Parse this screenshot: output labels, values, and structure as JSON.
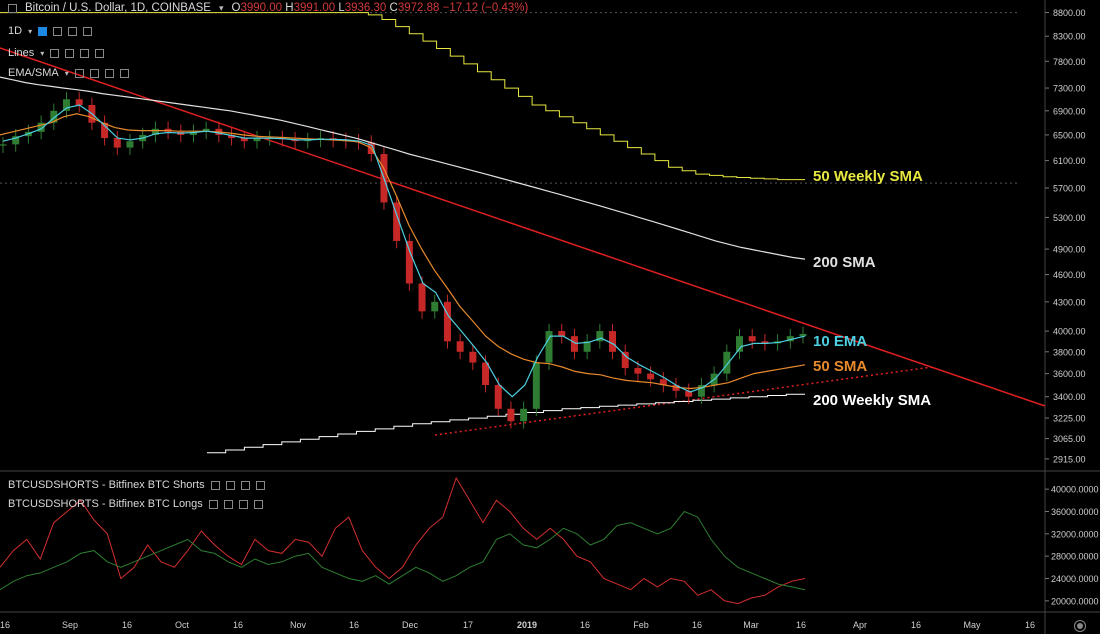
{
  "header": {
    "symbol": "Bitcoin / U.S. Dollar, 1D, COINBASE",
    "open_label": "O",
    "open": "3990.00",
    "high_label": "H",
    "high": "3991.00",
    "low_label": "L",
    "low": "3936.30",
    "close_label": "C",
    "close": "3972.88",
    "change": "−17.12 (−0.43%)"
  },
  "indicators": [
    "1D",
    "Lines",
    "EMA/SMA"
  ],
  "sub_indicators": [
    "BTCUSDSHORTS - Bitfinex BTC Shorts",
    "BTCUSDSHORTS - Bitfinex BTC Longs"
  ],
  "colors": {
    "background": "#000000",
    "up_candle": "#2e7d32",
    "down_candle": "#c62828",
    "ema10": "#4dd0e1",
    "sma50": "#e8892b",
    "sma200": "#e0e0e0",
    "weekly50": "#e8e840",
    "weekly200": "#ffffff",
    "trendline": "#e02020",
    "shorts": "#d32f2f",
    "longs": "#2e7d32"
  },
  "chart_data": [
    {
      "type": "line",
      "title": "Bitcoin / U.S. Dollar, 1D, COINBASE",
      "x_ticks": [
        "16",
        "Sep",
        "16",
        "Oct",
        "16",
        "Nov",
        "16",
        "Dec",
        "17",
        "2019",
        "16",
        "Feb",
        "16",
        "Mar",
        "16",
        "Apr",
        "16",
        "May",
        "16"
      ],
      "y_ticks": [
        8800,
        8300,
        7800,
        7300,
        6900,
        6500,
        6100,
        5700,
        5300,
        4900,
        4600,
        4300,
        4000,
        3800,
        3600,
        3400,
        3225,
        3065,
        2915
      ],
      "y_range": [
        2850,
        8900
      ],
      "price": [
        6350,
        6480,
        6550,
        6700,
        6900,
        7100,
        7000,
        6700,
        6450,
        6300,
        6400,
        6500,
        6600,
        6550,
        6500,
        6550,
        6600,
        6500,
        6450,
        6400,
        6450,
        6450,
        6430,
        6400,
        6420,
        6450,
        6420,
        6400,
        6380,
        6200,
        5500,
        5000,
        4500,
        4200,
        4300,
        3900,
        3800,
        3700,
        3500,
        3300,
        3200,
        3300,
        3700,
        4000,
        3950,
        3800,
        3900,
        4000,
        3800,
        3650,
        3600,
        3550,
        3500,
        3450,
        3400,
        3500,
        3600,
        3800,
        3950,
        3900,
        3880,
        3900,
        3950,
        3972
      ],
      "series": [
        {
          "name": "10 EMA",
          "values": [
            6400,
            6450,
            6520,
            6600,
            6780,
            6950,
            7000,
            6850,
            6650,
            6450,
            6420,
            6450,
            6520,
            6540,
            6530,
            6540,
            6560,
            6530,
            6490,
            6450,
            6450,
            6450,
            6440,
            6420,
            6420,
            6430,
            6430,
            6420,
            6400,
            6330,
            5800,
            5300,
            4850,
            4500,
            4400,
            4150,
            4000,
            3850,
            3700,
            3500,
            3400,
            3500,
            3750,
            3950,
            3950,
            3880,
            3890,
            3930,
            3870,
            3750,
            3680,
            3620,
            3560,
            3490,
            3440,
            3480,
            3560,
            3700,
            3850,
            3880,
            3880,
            3890,
            3920,
            3950
          ]
        },
        {
          "name": "50 SMA",
          "values": [
            6500,
            6550,
            6600,
            6650,
            6700,
            6800,
            6850,
            6800,
            6700,
            6620,
            6580,
            6570,
            6570,
            6570,
            6560,
            6560,
            6560,
            6550,
            6530,
            6500,
            6480,
            6470,
            6460,
            6450,
            6440,
            6430,
            6420,
            6410,
            6390,
            6300,
            6000,
            5600,
            5200,
            4900,
            4650,
            4450,
            4250,
            4100,
            3950,
            3850,
            3780,
            3730,
            3700,
            3690,
            3660,
            3620,
            3600,
            3590,
            3560,
            3540,
            3530,
            3520,
            3500,
            3480,
            3470,
            3480,
            3500,
            3520,
            3560,
            3600,
            3620,
            3640,
            3660,
            3680
          ]
        },
        {
          "name": "200 SMA",
          "values": [
            7500,
            7450,
            7400,
            7360,
            7330,
            7300,
            7270,
            7240,
            7200,
            7170,
            7140,
            7110,
            7080,
            7050,
            7020,
            6990,
            6960,
            6930,
            6900,
            6860,
            6820,
            6780,
            6740,
            6690,
            6640,
            6590,
            6540,
            6490,
            6440,
            6380,
            6320,
            6260,
            6200,
            6150,
            6100,
            6050,
            6000,
            5950,
            5900,
            5850,
            5800,
            5750,
            5700,
            5650,
            5600,
            5550,
            5500,
            5450,
            5400,
            5350,
            5300,
            5250,
            5200,
            5150,
            5100,
            5050,
            5000,
            4960,
            4920,
            4890,
            4860,
            4830,
            4800,
            4780
          ]
        },
        {
          "name": "50 Weekly SMA",
          "values": [
            8800,
            8800,
            8800,
            8800,
            8800,
            8800,
            8800,
            8800,
            8800,
            8800,
            8800,
            8800,
            8800,
            8800,
            8800,
            8800,
            8800,
            8800,
            8800,
            8800,
            8800,
            8800,
            8800,
            8800,
            8800,
            8800,
            8800,
            8750,
            8650,
            8500,
            8350,
            8200,
            8050,
            7900,
            7750,
            7600,
            7450,
            7300,
            7150,
            7000,
            6900,
            6800,
            6700,
            6600,
            6500,
            6400,
            6300,
            6200,
            6100,
            6000,
            5950,
            5900,
            5880,
            5860,
            5850,
            5840,
            5830,
            5820,
            5820
          ]
        },
        {
          "name": "200 Weekly SMA",
          "values": [
            2960,
            2980,
            3000,
            3020,
            3040,
            3060,
            3080,
            3100,
            3120,
            3140,
            3160,
            3180,
            3195,
            3210,
            3225,
            3240,
            3255,
            3270,
            3285,
            3300,
            3310,
            3320,
            3330,
            3340,
            3350,
            3360,
            3370,
            3380,
            3390,
            3400,
            3410,
            3420
          ]
        }
      ],
      "annotations": [
        "50 Weekly SMA",
        "200 SMA",
        "10 EMA",
        "50 SMA",
        "200 Weekly SMA"
      ],
      "trendline": {
        "from": [
          0,
          6900
        ],
        "to": [
          100,
          3350
        ]
      },
      "support_line": {
        "from": [
          35,
          3180
        ],
        "to": [
          73,
          3640
        ]
      }
    },
    {
      "type": "line",
      "y_ticks": [
        "40000.0000",
        "36000.0000",
        "32000.0000",
        "28000.0000",
        "24000.0000",
        "20000.0000"
      ],
      "y_range": [
        18000,
        42000
      ],
      "series": [
        {
          "name": "BTCUSDSHORTS - Bitfinex BTC Shorts",
          "values": [
            26000,
            29000,
            31000,
            27500,
            34000,
            36000,
            38000,
            34500,
            32000,
            24000,
            26000,
            30000,
            27000,
            26000,
            29000,
            32500,
            30000,
            28000,
            26500,
            31000,
            29000,
            28500,
            31000,
            30500,
            28000,
            33000,
            35000,
            29000,
            26000,
            24000,
            26000,
            30000,
            33000,
            35000,
            42000,
            38000,
            34000,
            38000,
            36000,
            33000,
            31000,
            33000,
            31000,
            28000,
            27000,
            24000,
            23000,
            22000,
            24000,
            22500,
            24000,
            23500,
            21000,
            22000,
            20000,
            19500,
            20500,
            21000,
            22500,
            23500,
            24000
          ]
        },
        {
          "name": "BTCUSDSHORTS - Bitfinex BTC Longs",
          "values": [
            22000,
            23500,
            24500,
            25000,
            26000,
            27000,
            28500,
            29000,
            27000,
            26000,
            27000,
            28000,
            29000,
            30000,
            31000,
            29000,
            28500,
            27000,
            26000,
            27500,
            26500,
            27000,
            28000,
            28500,
            26000,
            25000,
            24000,
            23500,
            24500,
            23000,
            24500,
            26000,
            25000,
            23500,
            24500,
            26000,
            27000,
            31000,
            32000,
            30000,
            29500,
            31000,
            33000,
            32000,
            30000,
            31000,
            33500,
            34000,
            33000,
            32000,
            33000,
            36000,
            35000,
            31000,
            28000,
            26000,
            25000,
            24000,
            23000,
            22500,
            22000
          ]
        }
      ]
    }
  ]
}
